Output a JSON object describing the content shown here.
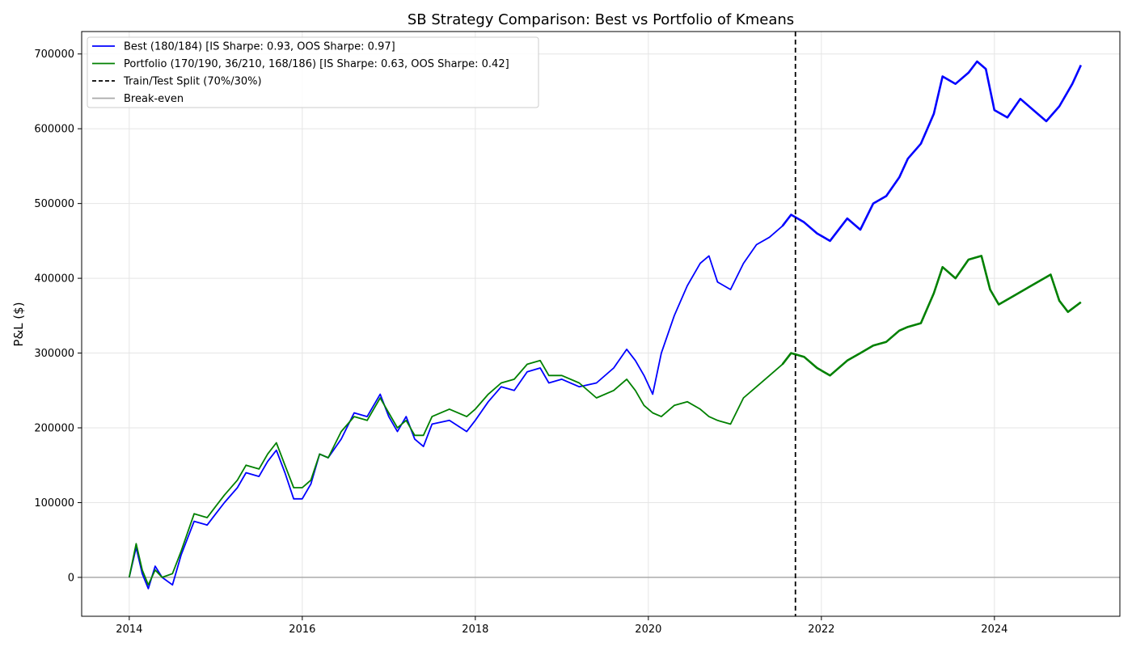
{
  "chart_data": {
    "type": "line",
    "title": "SB Strategy Comparison: Best vs Portfolio of Kmeans",
    "xlabel": "",
    "ylabel": "P&L ($)",
    "xlim": [
      2013.45,
      2025.45
    ],
    "ylim": [
      -52000,
      730000
    ],
    "x_ticks": [
      2014,
      2016,
      2018,
      2020,
      2022,
      2024
    ],
    "x_tick_labels": [
      "2014",
      "2016",
      "2018",
      "2020",
      "2022",
      "2024"
    ],
    "y_ticks": [
      0,
      100000,
      200000,
      300000,
      400000,
      500000,
      600000,
      700000
    ],
    "y_tick_labels": [
      "0",
      "100000",
      "200000",
      "300000",
      "400000",
      "500000",
      "600000",
      "700000"
    ],
    "grid": true,
    "legend_position": "top-left",
    "split_x": 2021.7,
    "breakeven_y": 0,
    "colors": {
      "best": "#0000ff",
      "portfolio": "#008000",
      "split": "#000000",
      "breakeven": "#aaaaaa",
      "grid": "#e5e5e5"
    },
    "legend": [
      {
        "key": "best",
        "label": "Best (180/184) [IS Sharpe: 0.93, OOS Sharpe: 0.97]",
        "color": "#0000ff",
        "style": "solid"
      },
      {
        "key": "portfolio",
        "label": "Portfolio (170/190, 36/210, 168/186) [IS Sharpe: 0.63, OOS Sharpe: 0.42]",
        "color": "#008000",
        "style": "solid"
      },
      {
        "key": "split",
        "label": "Train/Test Split (70%/30%)",
        "color": "#000000",
        "style": "dashed"
      },
      {
        "key": "breakeven",
        "label": "Break-even",
        "color": "#aaaaaa",
        "style": "solid"
      }
    ],
    "series": [
      {
        "name": "Best (180/184) [IS Sharpe: 0.93, OOS Sharpe: 0.97]",
        "color": "#0000ff",
        "points": [
          [
            2014.0,
            0
          ],
          [
            2014.08,
            40000
          ],
          [
            2014.15,
            5000
          ],
          [
            2014.22,
            -15000
          ],
          [
            2014.3,
            15000
          ],
          [
            2014.38,
            0
          ],
          [
            2014.5,
            -10000
          ],
          [
            2014.6,
            30000
          ],
          [
            2014.75,
            75000
          ],
          [
            2014.9,
            70000
          ],
          [
            2015.0,
            85000
          ],
          [
            2015.1,
            100000
          ],
          [
            2015.25,
            120000
          ],
          [
            2015.35,
            140000
          ],
          [
            2015.5,
            135000
          ],
          [
            2015.6,
            155000
          ],
          [
            2015.7,
            170000
          ],
          [
            2015.8,
            140000
          ],
          [
            2015.9,
            105000
          ],
          [
            2016.0,
            105000
          ],
          [
            2016.1,
            125000
          ],
          [
            2016.2,
            165000
          ],
          [
            2016.3,
            160000
          ],
          [
            2016.45,
            185000
          ],
          [
            2016.6,
            220000
          ],
          [
            2016.75,
            215000
          ],
          [
            2016.9,
            245000
          ],
          [
            2017.0,
            215000
          ],
          [
            2017.1,
            195000
          ],
          [
            2017.2,
            215000
          ],
          [
            2017.3,
            185000
          ],
          [
            2017.4,
            175000
          ],
          [
            2017.5,
            205000
          ],
          [
            2017.7,
            210000
          ],
          [
            2017.9,
            195000
          ],
          [
            2018.0,
            210000
          ],
          [
            2018.15,
            235000
          ],
          [
            2018.3,
            255000
          ],
          [
            2018.45,
            250000
          ],
          [
            2018.6,
            275000
          ],
          [
            2018.75,
            280000
          ],
          [
            2018.85,
            260000
          ],
          [
            2019.0,
            265000
          ],
          [
            2019.2,
            255000
          ],
          [
            2019.4,
            260000
          ],
          [
            2019.6,
            280000
          ],
          [
            2019.75,
            305000
          ],
          [
            2019.85,
            290000
          ],
          [
            2019.95,
            270000
          ],
          [
            2020.05,
            245000
          ],
          [
            2020.15,
            300000
          ],
          [
            2020.3,
            350000
          ],
          [
            2020.45,
            390000
          ],
          [
            2020.6,
            420000
          ],
          [
            2020.7,
            430000
          ],
          [
            2020.8,
            395000
          ],
          [
            2020.95,
            385000
          ],
          [
            2021.1,
            420000
          ],
          [
            2021.25,
            445000
          ],
          [
            2021.4,
            455000
          ],
          [
            2021.55,
            470000
          ],
          [
            2021.65,
            485000
          ],
          [
            2021.8,
            475000
          ],
          [
            2021.95,
            460000
          ],
          [
            2022.1,
            450000
          ],
          [
            2022.3,
            480000
          ],
          [
            2022.45,
            465000
          ],
          [
            2022.6,
            500000
          ],
          [
            2022.75,
            510000
          ],
          [
            2022.9,
            535000
          ],
          [
            2023.0,
            560000
          ],
          [
            2023.15,
            580000
          ],
          [
            2023.3,
            620000
          ],
          [
            2023.4,
            670000
          ],
          [
            2023.55,
            660000
          ],
          [
            2023.7,
            675000
          ],
          [
            2023.8,
            690000
          ],
          [
            2023.9,
            680000
          ],
          [
            2024.0,
            625000
          ],
          [
            2024.15,
            615000
          ],
          [
            2024.3,
            640000
          ],
          [
            2024.45,
            625000
          ],
          [
            2024.6,
            610000
          ],
          [
            2024.75,
            630000
          ],
          [
            2024.9,
            660000
          ],
          [
            2025.0,
            685000
          ]
        ]
      },
      {
        "name": "Portfolio (170/190, 36/210, 168/186) [IS Sharpe: 0.63, OOS Sharpe: 0.42]",
        "color": "#008000",
        "points": [
          [
            2014.0,
            0
          ],
          [
            2014.08,
            45000
          ],
          [
            2014.15,
            10000
          ],
          [
            2014.22,
            -10000
          ],
          [
            2014.3,
            10000
          ],
          [
            2014.38,
            0
          ],
          [
            2014.5,
            5000
          ],
          [
            2014.6,
            35000
          ],
          [
            2014.75,
            85000
          ],
          [
            2014.9,
            80000
          ],
          [
            2015.0,
            95000
          ],
          [
            2015.1,
            110000
          ],
          [
            2015.25,
            130000
          ],
          [
            2015.35,
            150000
          ],
          [
            2015.5,
            145000
          ],
          [
            2015.6,
            165000
          ],
          [
            2015.7,
            180000
          ],
          [
            2015.8,
            150000
          ],
          [
            2015.9,
            120000
          ],
          [
            2016.0,
            120000
          ],
          [
            2016.1,
            130000
          ],
          [
            2016.2,
            165000
          ],
          [
            2016.3,
            160000
          ],
          [
            2016.45,
            195000
          ],
          [
            2016.6,
            215000
          ],
          [
            2016.75,
            210000
          ],
          [
            2016.9,
            240000
          ],
          [
            2017.0,
            220000
          ],
          [
            2017.1,
            200000
          ],
          [
            2017.2,
            210000
          ],
          [
            2017.3,
            190000
          ],
          [
            2017.4,
            190000
          ],
          [
            2017.5,
            215000
          ],
          [
            2017.7,
            225000
          ],
          [
            2017.9,
            215000
          ],
          [
            2018.0,
            225000
          ],
          [
            2018.15,
            245000
          ],
          [
            2018.3,
            260000
          ],
          [
            2018.45,
            265000
          ],
          [
            2018.6,
            285000
          ],
          [
            2018.75,
            290000
          ],
          [
            2018.85,
            270000
          ],
          [
            2019.0,
            270000
          ],
          [
            2019.2,
            260000
          ],
          [
            2019.4,
            240000
          ],
          [
            2019.6,
            250000
          ],
          [
            2019.75,
            265000
          ],
          [
            2019.85,
            250000
          ],
          [
            2019.95,
            230000
          ],
          [
            2020.05,
            220000
          ],
          [
            2020.15,
            215000
          ],
          [
            2020.3,
            230000
          ],
          [
            2020.45,
            235000
          ],
          [
            2020.6,
            225000
          ],
          [
            2020.7,
            215000
          ],
          [
            2020.8,
            210000
          ],
          [
            2020.95,
            205000
          ],
          [
            2021.1,
            240000
          ],
          [
            2021.25,
            255000
          ],
          [
            2021.4,
            270000
          ],
          [
            2021.55,
            285000
          ],
          [
            2021.65,
            300000
          ],
          [
            2021.8,
            295000
          ],
          [
            2021.95,
            280000
          ],
          [
            2022.1,
            270000
          ],
          [
            2022.3,
            290000
          ],
          [
            2022.45,
            300000
          ],
          [
            2022.6,
            310000
          ],
          [
            2022.75,
            315000
          ],
          [
            2022.9,
            330000
          ],
          [
            2023.0,
            335000
          ],
          [
            2023.15,
            340000
          ],
          [
            2023.3,
            380000
          ],
          [
            2023.4,
            415000
          ],
          [
            2023.55,
            400000
          ],
          [
            2023.7,
            425000
          ],
          [
            2023.85,
            430000
          ],
          [
            2023.95,
            385000
          ],
          [
            2024.05,
            365000
          ],
          [
            2024.2,
            375000
          ],
          [
            2024.35,
            385000
          ],
          [
            2024.5,
            395000
          ],
          [
            2024.65,
            405000
          ],
          [
            2024.75,
            370000
          ],
          [
            2024.85,
            355000
          ],
          [
            2025.0,
            368000
          ]
        ]
      }
    ]
  }
}
